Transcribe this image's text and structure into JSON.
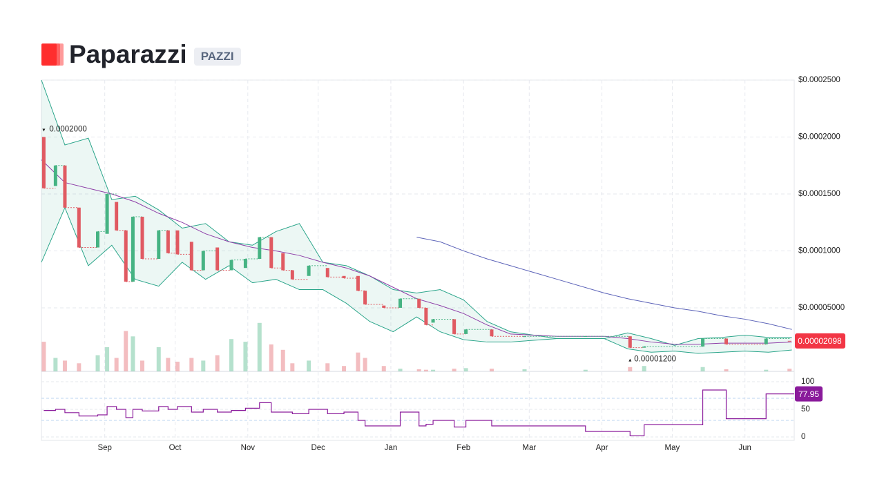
{
  "header": {
    "title": "Paparazzi",
    "symbol": "PAZZI"
  },
  "chart_data": {
    "type": "candlestick",
    "x": [
      1,
      6,
      10,
      16,
      24,
      28,
      32,
      36,
      39,
      43,
      50,
      54,
      58,
      64,
      69,
      75,
      81,
      87,
      93,
      98,
      103,
      107,
      114,
      122,
      129,
      135,
      138,
      146,
      153,
      161,
      164,
      167,
      176,
      181,
      192,
      206,
      232,
      251,
      257,
      282,
      292,
      309,
      319
    ],
    "open": [
      0.0002,
      0.000157,
      0.000175,
      0.000138,
      0.000103,
      0.000115,
      0.000143,
      0.000118,
      7.3e-05,
      0.00013,
      9.3e-05,
      0.000118,
      0.000118,
      0.000108,
      8.3e-05,
      0.000103,
      8.3e-05,
      8.5e-05,
      9.3e-05,
      0.000112,
      9.8e-05,
      8.3e-05,
      7.8e-05,
      8.5e-05,
      7.8e-05,
      7.8e-05,
      6.5e-05,
      5.2e-05,
      5e-05,
      5.8e-05,
      5e-05,
      3.7e-05,
      4e-05,
      2.7e-05,
      3.1e-05,
      2.5e-05,
      2.5e-05,
      2.5e-05,
      1.5e-05,
      1.6e-05,
      2.3e-05,
      1.8e-05,
      2.1e-05
    ],
    "close": [
      0.000155,
      0.000175,
      0.000138,
      0.000103,
      0.000117,
      0.00015,
      0.000118,
      7.3e-05,
      0.00013,
      9.3e-05,
      0.000118,
      9.8e-05,
      9.7e-05,
      8.3e-05,
      0.0001,
      8.3e-05,
      9.2e-05,
      9.3e-05,
      0.000112,
      8.5e-05,
      8.3e-05,
      7.5e-05,
      8.7e-05,
      7.7e-05,
      7.6e-05,
      6.5e-05,
      5.3e-05,
      5e-05,
      5.8e-05,
      5e-05,
      3.5e-05,
      4e-05,
      2.7e-05,
      3.1e-05,
      2.5e-05,
      2.5e-05,
      2.5e-05,
      1.5e-05,
      1.6e-05,
      2.3e-05,
      1.8e-05,
      2.3e-05,
      2.098e-05
    ],
    "volume": [
      55,
      25,
      20,
      15,
      30,
      45,
      25,
      75,
      65,
      20,
      45,
      25,
      18,
      25,
      20,
      30,
      60,
      55,
      90,
      50,
      40,
      15,
      20,
      15,
      10,
      35,
      25,
      10,
      5,
      4,
      3,
      3,
      5,
      6,
      5,
      4,
      3,
      8,
      10,
      8,
      4,
      3,
      5
    ],
    "vlim": [
      0,
      100
    ],
    "up_color": "#46b383",
    "down_color": "#e05a62",
    "xlim": [
      0,
      321
    ],
    "xticks": [
      {
        "value": 27,
        "label": "Sep"
      },
      {
        "value": 57,
        "label": "Oct"
      },
      {
        "value": 88,
        "label": "Nov"
      },
      {
        "value": 118,
        "label": "Dec"
      },
      {
        "value": 149,
        "label": "Jan"
      },
      {
        "value": 180,
        "label": "Feb"
      },
      {
        "value": 208,
        "label": "Mar"
      },
      {
        "value": 239,
        "label": "Apr"
      },
      {
        "value": 269,
        "label": "May"
      },
      {
        "value": 300,
        "label": "Jun"
      }
    ],
    "ylim": [
      -5.8e-06,
      0.00025
    ],
    "yticks": [
      {
        "value": 5e-05,
        "label": "$0.00005000"
      },
      {
        "value": 0.0001,
        "label": "$0.0001000"
      },
      {
        "value": 0.00015,
        "label": "$0.0001500"
      },
      {
        "value": 0.0002,
        "label": "$0.0002000"
      },
      {
        "value": 0.00025,
        "label": "$0.0002500"
      }
    ],
    "grid": true,
    "high_marker": {
      "x": 1,
      "value": 0.0002,
      "label": "0.0002000"
    },
    "low_marker": {
      "x": 251,
      "value": 1.2e-05,
      "label": "0.00001200"
    },
    "indicators": {
      "x": [
        0,
        10,
        20,
        30,
        40,
        50,
        60,
        70,
        80,
        90,
        100,
        110,
        120,
        130,
        140,
        150,
        160,
        170,
        180,
        190,
        200,
        220,
        240,
        250,
        260,
        270,
        280,
        290,
        300,
        310,
        320
      ],
      "band_color": "#2aa58a",
      "bb_upper": [
        0.00025,
        0.000193,
        0.000199,
        0.000145,
        0.000148,
        0.000136,
        0.00012,
        0.000124,
        0.000108,
        0.000105,
        0.000117,
        0.000124,
        9e-05,
        8.7e-05,
        7.8e-05,
        6.6e-05,
        6.3e-05,
        6.6e-05,
        5.7e-05,
        3.8e-05,
        2.9e-05,
        2.3e-05,
        2.3e-05,
        2.8e-05,
        2.3e-05,
        1.7e-05,
        2.3e-05,
        2.4e-05,
        2.6e-05,
        2.4e-05,
        2.4e-05
      ],
      "bb_lower": [
        9e-05,
        0.000138,
        8.7e-05,
        0.000105,
        7.5e-05,
        6.9e-05,
        9e-05,
        7.5e-05,
        8.7e-05,
        7.2e-05,
        7.5e-05,
        6.6e-05,
        6.6e-05,
        5.4e-05,
        3.8e-05,
        2.9e-05,
        4.2e-05,
        2.9e-05,
        2.2e-05,
        2e-05,
        2e-05,
        2.3e-05,
        2.3e-05,
        1.4e-05,
        1.1e-05,
        1.2e-05,
        1e-05,
        1.1e-05,
        1.2e-05,
        1.1e-05,
        1.3e-05
      ],
      "sma_color": "#8e3fa8",
      "sma": [
        0.00018,
        0.00016,
        0.000155,
        0.00015,
        0.000143,
        0.000133,
        0.000125,
        0.000115,
        0.000108,
        0.000103,
        0.0001,
        9.6e-05,
        9e-05,
        8.5e-05,
        7.8e-05,
        6.8e-05,
        5.8e-05,
        5.2e-05,
        4.5e-05,
        3.5e-05,
        2.7e-05,
        2.5e-05,
        2.5e-05,
        2.3e-05,
        2e-05,
        1.8e-05,
        1.8e-05,
        1.9e-05,
        1.9e-05,
        1.9e-05,
        2e-05
      ],
      "long_color": "#5b62b8",
      "long_ma": [
        null,
        null,
        null,
        null,
        null,
        null,
        null,
        null,
        null,
        null,
        null,
        null,
        null,
        null,
        null,
        null,
        0.000112,
        0.000108,
        0.0001,
        9.3e-05,
        8.7e-05,
        7.5e-05,
        6.3e-05,
        5.8e-05,
        5.4e-05,
        5e-05,
        4.7e-05,
        4.3e-05,
        4e-05,
        3.6e-05,
        3.1e-05
      ]
    },
    "rsi": {
      "values": [
        48,
        50,
        44,
        38,
        40,
        55,
        50,
        35,
        50,
        47,
        55,
        50,
        55,
        45,
        50,
        45,
        48,
        52,
        62,
        45,
        45,
        42,
        50,
        42,
        45,
        30,
        20,
        20,
        45,
        20,
        23,
        30,
        18,
        30,
        20,
        20,
        10,
        2,
        22,
        85,
        33,
        77.95,
        77.95
      ],
      "color": "#8a1a9b",
      "ylim": [
        -6.25,
        106.25
      ],
      "yticks": [
        0,
        50,
        100
      ],
      "bands": [
        30,
        70
      ]
    }
  }
}
